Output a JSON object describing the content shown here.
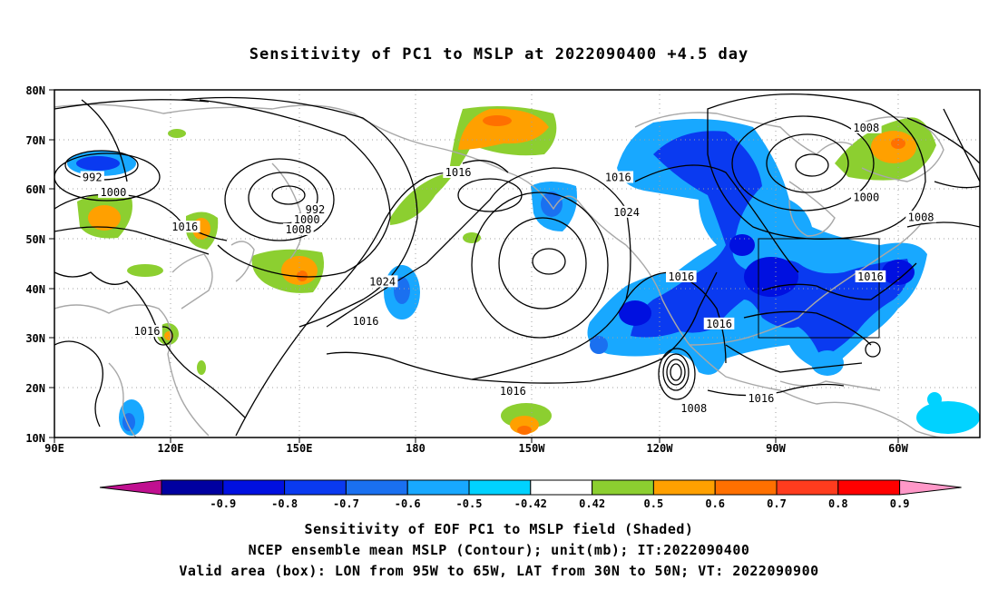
{
  "title": "Sensitivity of PC1 to MSLP at 2022090400 +4.5 day",
  "map": {
    "lat_labels": [
      "80N",
      "70N",
      "60N",
      "50N",
      "40N",
      "30N",
      "20N",
      "10N"
    ],
    "lon_labels": [
      "90E",
      "120E",
      "150E",
      "180",
      "150W",
      "120W",
      "90W",
      "60W"
    ],
    "contour_labels": [
      {
        "text": "992",
        "lon": 99,
        "lat": 62
      },
      {
        "text": "1000",
        "lon": 104,
        "lat": 59
      },
      {
        "text": "992",
        "lon": 152,
        "lat": 55.5
      },
      {
        "text": "1000",
        "lon": 150,
        "lat": 53.5
      },
      {
        "text": "1008",
        "lon": 148,
        "lat": 51.5
      },
      {
        "text": "1016",
        "lon": 121,
        "lat": 52
      },
      {
        "text": "1016",
        "lon": 186,
        "lat": 63
      },
      {
        "text": "1016",
        "lon": 224,
        "lat": 62
      },
      {
        "text": "1024",
        "lon": 226,
        "lat": 55
      },
      {
        "text": "1024",
        "lon": 168,
        "lat": 41
      },
      {
        "text": "1016",
        "lon": 164,
        "lat": 33
      },
      {
        "text": "1016",
        "lon": 112,
        "lat": 31
      },
      {
        "text": "1016",
        "lon": 239,
        "lat": 42
      },
      {
        "text": "1016",
        "lon": 248,
        "lat": 32.5
      },
      {
        "text": "1016",
        "lon": 199,
        "lat": 19
      },
      {
        "text": "1008",
        "lon": 242,
        "lat": 15.5
      },
      {
        "text": "1016",
        "lon": 258,
        "lat": 17.5
      },
      {
        "text": "1008",
        "lon": 283,
        "lat": 72
      },
      {
        "text": "1000",
        "lon": 283,
        "lat": 58
      },
      {
        "text": "1008",
        "lon": 296,
        "lat": 54
      },
      {
        "text": "1016",
        "lon": 284,
        "lat": 42
      }
    ],
    "valid_box": {
      "lon_min": 265,
      "lon_max": 295,
      "lat_min": 30,
      "lat_max": 50
    }
  },
  "colorbar": {
    "labels": [
      "-0.9",
      "-0.8",
      "-0.7",
      "-0.6",
      "-0.5",
      "-0.42",
      "0.42",
      "0.5",
      "0.6",
      "0.7",
      "0.8",
      "0.9"
    ],
    "colors": [
      "#0000a0",
      "#0010e0",
      "#0a3af0",
      "#1a70f0",
      "#18a8ff",
      "#00d2ff",
      "#ffffff",
      "#8ccf30",
      "#ffa000",
      "#ff7000",
      "#ff3c1e",
      "#ff0000",
      "#ff98c8"
    ],
    "left_end_color": "#c01090",
    "right_end_color": "#ff98c8"
  },
  "footer": {
    "line1": "Sensitivity of EOF PC1 to MSLP field (Shaded)",
    "line2": "NCEP ensemble mean MSLP (Contour); unit(mb); IT:2022090400",
    "line3": "Valid area (box): LON from 95W to 65W, LAT from 30N to 50N; VT: 2022090900"
  }
}
